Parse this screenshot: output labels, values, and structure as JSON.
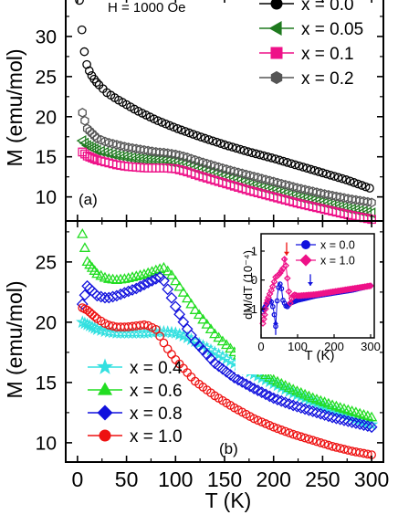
{
  "figure": {
    "x_axis_label": "T (K)",
    "x_ticks": [
      "0",
      "50",
      "100",
      "150",
      "200",
      "250",
      "300"
    ]
  },
  "chart_data": [
    {
      "panel": "(a)",
      "type": "scatter",
      "annotation": "H = 1000 Oe",
      "ylabel": "M (emu/mol)",
      "xlim": [
        -12,
        312
      ],
      "ylim": [
        7,
        35
      ],
      "y_ticks": [
        10,
        15,
        20,
        25,
        30
      ],
      "legend_placement": "top-right",
      "series": [
        {
          "name": "x = 0.0",
          "color": "#000000",
          "marker": "circle",
          "x": [
            2,
            4,
            6,
            8,
            10,
            15,
            20,
            30,
            40,
            50,
            60,
            70,
            80,
            90,
            100,
            125,
            150,
            175,
            200,
            225,
            250,
            275,
            300
          ],
          "y": [
            34.5,
            31.5,
            28.8,
            27.4,
            26.2,
            25.0,
            24.2,
            23.0,
            22.2,
            21.5,
            20.8,
            20.2,
            19.6,
            19.1,
            18.6,
            17.5,
            16.5,
            15.6,
            14.8,
            13.9,
            13.0,
            12.1,
            11.0
          ]
        },
        {
          "name": "x = 0.05",
          "color": "#1f7a1f",
          "marker": "triangle-left",
          "x": [
            5,
            10,
            20,
            30,
            40,
            50,
            60,
            70,
            80,
            90,
            100,
            110,
            125,
            150,
            175,
            200,
            225,
            250,
            275,
            300
          ],
          "y": [
            17.0,
            16.4,
            15.8,
            15.5,
            15.2,
            15.0,
            14.8,
            14.7,
            14.6,
            14.5,
            14.3,
            14.0,
            13.4,
            12.5,
            11.6,
            10.8,
            10.0,
            9.3,
            8.6,
            8.0
          ]
        },
        {
          "name": "x = 0.1",
          "color": "#ee1188",
          "marker": "square",
          "x": [
            5,
            10,
            20,
            30,
            40,
            50,
            60,
            70,
            80,
            90,
            100,
            110,
            125,
            150,
            175,
            200,
            225,
            250,
            275,
            300
          ],
          "y": [
            15.6,
            15.1,
            14.6,
            14.3,
            14.0,
            13.8,
            13.7,
            13.6,
            13.6,
            13.6,
            13.5,
            13.2,
            12.6,
            11.7,
            10.8,
            10.0,
            9.2,
            8.5,
            7.8,
            7.2
          ]
        },
        {
          "name": "x = 0.2",
          "color": "#555555",
          "marker": "hexagon",
          "x": [
            5,
            10,
            20,
            30,
            40,
            50,
            60,
            70,
            80,
            90,
            100,
            110,
            125,
            150,
            175,
            200,
            225,
            250,
            275,
            300
          ],
          "y": [
            20.5,
            18.5,
            17.3,
            16.8,
            16.5,
            16.2,
            16.0,
            15.8,
            15.6,
            15.5,
            15.3,
            15.0,
            14.4,
            13.5,
            12.7,
            11.9,
            11.1,
            10.4,
            9.8,
            9.3
          ]
        }
      ]
    },
    {
      "panel": "(b)",
      "type": "scatter",
      "ylabel": "M (emu/mol)",
      "xlim": [
        -12,
        312
      ],
      "ylim": [
        8.4,
        28.4
      ],
      "y_ticks": [
        10,
        15,
        20,
        25
      ],
      "legend_placement": "bottom-left",
      "series": [
        {
          "name": "x = 0.4",
          "color": "#33e0e0",
          "marker": "star",
          "x": [
            5,
            10,
            20,
            30,
            40,
            50,
            60,
            70,
            80,
            90,
            100,
            110,
            120,
            140,
            160,
            180,
            200,
            220,
            240,
            260,
            280,
            300
          ],
          "y": [
            20.0,
            19.8,
            19.4,
            19.2,
            19.1,
            19.1,
            19.1,
            19.1,
            19.2,
            19.2,
            19.1,
            18.8,
            18.4,
            17.5,
            16.6,
            15.7,
            14.9,
            14.1,
            13.4,
            12.7,
            12.1,
            11.5
          ]
        },
        {
          "name": "x = 0.6",
          "color": "#22dd22",
          "marker": "triangle-up",
          "x": [
            5,
            10,
            20,
            30,
            40,
            50,
            60,
            70,
            80,
            88,
            95,
            100,
            110,
            120,
            140,
            160,
            180,
            200,
            220,
            240,
            260,
            280,
            300
          ],
          "y": [
            27.3,
            25.0,
            24.0,
            23.6,
            23.5,
            23.6,
            23.8,
            24.0,
            24.3,
            24.5,
            24.0,
            23.4,
            22.2,
            21.0,
            19.0,
            17.5,
            16.2,
            15.2,
            14.4,
            13.7,
            13.1,
            12.6,
            12.1
          ]
        },
        {
          "name": "x = 0.8",
          "color": "#1111dd",
          "marker": "diamond",
          "x": [
            5,
            10,
            20,
            30,
            40,
            50,
            60,
            70,
            80,
            86,
            95,
            100,
            110,
            120,
            140,
            160,
            180,
            200,
            220,
            240,
            260,
            280,
            300
          ],
          "y": [
            21.5,
            23.0,
            22.2,
            22.0,
            22.2,
            22.5,
            22.8,
            23.2,
            23.6,
            23.8,
            22.2,
            21.3,
            19.7,
            18.4,
            16.6,
            15.4,
            14.5,
            13.7,
            13.1,
            12.6,
            12.1,
            11.7,
            11.3
          ]
        },
        {
          "name": "x = 1.0",
          "color": "#ee1111",
          "marker": "circle",
          "x": [
            5,
            10,
            20,
            30,
            40,
            50,
            60,
            70,
            80,
            90,
            100,
            110,
            120,
            140,
            160,
            180,
            200,
            220,
            240,
            260,
            280,
            300
          ],
          "y": [
            21.2,
            21.0,
            20.3,
            19.8,
            19.6,
            19.6,
            19.7,
            19.8,
            19.4,
            18.0,
            16.9,
            16.0,
            15.1,
            13.9,
            12.9,
            12.0,
            11.3,
            10.7,
            10.2,
            9.7,
            9.3,
            9.0
          ]
        }
      ]
    },
    {
      "panel": "inset",
      "type": "line",
      "xlabel": "T (K)",
      "ylabel": "dM/dT (10⁻⁴)",
      "xlim": [
        0,
        310
      ],
      "ylim": [
        -2,
        1.6
      ],
      "x_ticks": [
        0,
        100,
        200,
        300
      ],
      "y_ticks": [
        -1,
        0,
        1
      ],
      "legend_placement": "top-right",
      "series": [
        {
          "name": "x = 0.0",
          "color": "#1111dd",
          "marker": "circle",
          "x": [
            5,
            10,
            15,
            20,
            25,
            30,
            35,
            40,
            45,
            50,
            55,
            60,
            70,
            80,
            100,
            150,
            200,
            250,
            300
          ],
          "y": [
            -1.1,
            -0.95,
            -0.85,
            -0.75,
            -0.7,
            -0.8,
            -1.1,
            -1.6,
            -0.5,
            -0.1,
            -0.2,
            -0.7,
            -0.95,
            -0.8,
            -0.7,
            -0.55,
            -0.45,
            -0.35,
            -0.2
          ]
        },
        {
          "name": "x = 1.0",
          "color": "#ee1188",
          "marker": "diamond",
          "x": [
            5,
            10,
            15,
            20,
            30,
            40,
            50,
            60,
            65,
            70,
            75,
            80,
            85,
            90,
            100,
            150,
            200,
            250,
            300
          ],
          "y": [
            -1.5,
            -1.2,
            -0.8,
            -0.6,
            -0.3,
            0.1,
            0.2,
            0.4,
            0.8,
            0.3,
            -0.3,
            -0.8,
            -0.6,
            -0.5,
            -0.55,
            -0.5,
            -0.4,
            -0.3,
            -0.2
          ]
        }
      ]
    }
  ]
}
